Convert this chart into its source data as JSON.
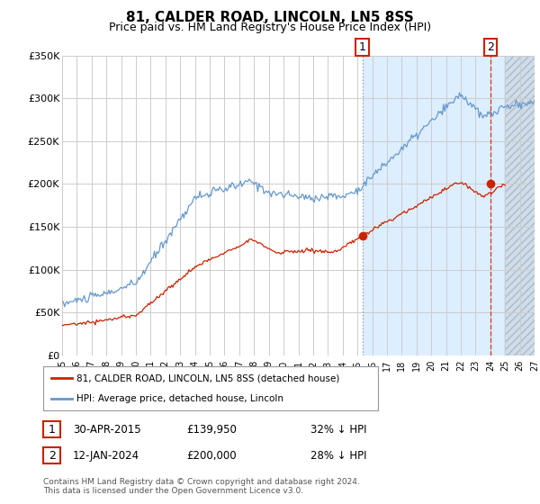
{
  "title": "81, CALDER ROAD, LINCOLN, LN5 8SS",
  "subtitle": "Price paid vs. HM Land Registry's House Price Index (HPI)",
  "title_fontsize": 11,
  "subtitle_fontsize": 9,
  "background_color": "#ffffff",
  "plot_bg_color": "#ffffff",
  "plot_bg_right_color": "#ddeeff",
  "hatch_bg_color": "#d0dde8",
  "grid_color": "#cccccc",
  "ylim": [
    0,
    350000
  ],
  "yticks": [
    0,
    50000,
    100000,
    150000,
    200000,
    250000,
    300000,
    350000
  ],
  "ytick_labels": [
    "£0",
    "£50K",
    "£100K",
    "£150K",
    "£200K",
    "£250K",
    "£300K",
    "£350K"
  ],
  "hpi_color": "#6699cc",
  "price_color": "#cc2200",
  "transaction1": {
    "date": "30-APR-2015",
    "price": 139950,
    "label": "1",
    "year": 2015.33
  },
  "transaction2": {
    "date": "12-JAN-2024",
    "price": 200000,
    "label": "2",
    "year": 2024.04
  },
  "legend_label1": "81, CALDER ROAD, LINCOLN, LN5 8SS (detached house)",
  "legend_label2": "HPI: Average price, detached house, Lincoln",
  "table_row1": [
    "1",
    "30-APR-2015",
    "£139,950",
    "32% ↓ HPI"
  ],
  "table_row2": [
    "2",
    "12-JAN-2024",
    "£200,000",
    "28% ↓ HPI"
  ],
  "footer": "Contains HM Land Registry data © Crown copyright and database right 2024.\nThis data is licensed under the Open Government Licence v3.0.",
  "hatch_start_year": 2025.0,
  "xmin": 1995.0,
  "xmax": 2027.0
}
